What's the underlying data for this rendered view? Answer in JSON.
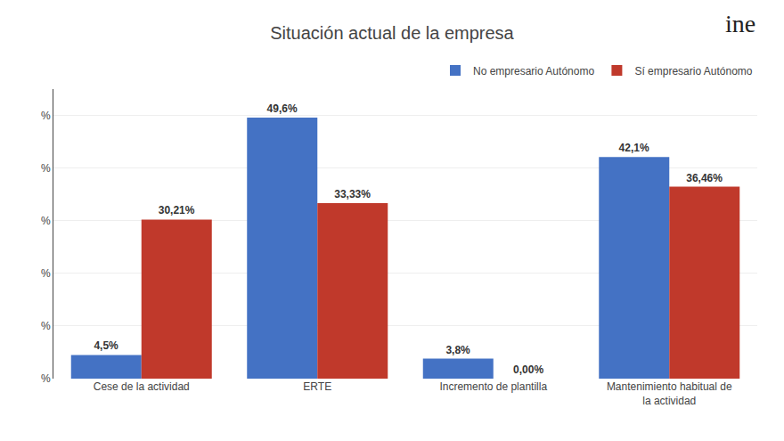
{
  "chart_data": {
    "type": "bar",
    "title": "Situación actual de la empresa",
    "categories": [
      "Cese de la actividad",
      "ERTE",
      "Incremento de plantilla",
      "Mantenimiento habitual de\nla actividad"
    ],
    "series": [
      {
        "name": "No empresario Autónomo",
        "color": "#4472C4",
        "values": [
          4.5,
          49.6,
          3.8,
          42.1
        ],
        "value_labels": [
          "4,5%",
          "49,6%",
          "3,8%",
          "42,1%"
        ]
      },
      {
        "name": "Sí empresario Autónomo",
        "color": "#C0392B",
        "values": [
          30.21,
          33.33,
          0.0,
          36.46
        ],
        "value_labels": [
          "30,21%",
          "33,33%",
          "0,00%",
          "36,46%"
        ]
      }
    ],
    "ylim": [
      0,
      55
    ],
    "yticks": [
      {
        "value": 0,
        "label": "%"
      },
      {
        "value": 10,
        "label": "%"
      },
      {
        "value": 20,
        "label": "%"
      },
      {
        "value": 30,
        "label": "%"
      },
      {
        "value": 40,
        "label": "%"
      },
      {
        "value": 50,
        "label": "%"
      }
    ],
    "grid": true,
    "legend": "upper right",
    "data_labels": true,
    "annotations": [
      "ine"
    ]
  }
}
